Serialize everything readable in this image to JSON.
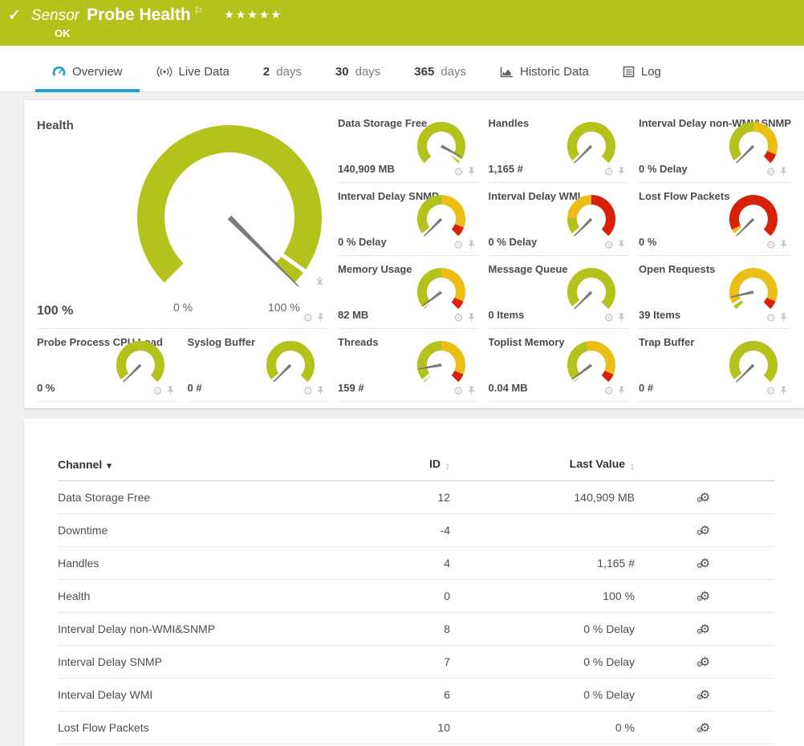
{
  "header": {
    "status_icon": "✓",
    "kind_label": "Sensor",
    "title": "Probe Health",
    "flag_icon": "⚐",
    "stars": "★★★★★",
    "status_text": "OK",
    "bg_color": "#b3c31c"
  },
  "tabs": [
    {
      "id": "overview",
      "icon": "gauge",
      "label": "Overview",
      "active": true
    },
    {
      "id": "live-data",
      "icon": "broadcast",
      "label": "Live Data",
      "active": false
    },
    {
      "id": "2-days",
      "num": "2",
      "label": "days",
      "active": false
    },
    {
      "id": "30-days",
      "num": "30",
      "label": "days",
      "active": false
    },
    {
      "id": "365-days",
      "num": "365",
      "label": "days",
      "active": false
    },
    {
      "id": "historic-data",
      "icon": "chart",
      "label": "Historic Data",
      "active": false
    },
    {
      "id": "log",
      "icon": "log",
      "label": "Log",
      "active": false
    }
  ],
  "colors": {
    "green": "#b3c31c",
    "yellow": "#ebbe15",
    "red": "#d92008",
    "needle": "#7a7a7a",
    "accent_blue": "#1ba2d1"
  },
  "health_gauge": {
    "title": "Health",
    "value": "100 %",
    "scale_min": "0 %",
    "scale_max": "100 %",
    "needle": 1.0,
    "marker": 0.965,
    "avg_label": "x̄",
    "segments": [
      {
        "color": "green",
        "from": 0,
        "to": 1
      }
    ]
  },
  "gauges": [
    {
      "title": "Data Storage Free",
      "value": "140,909 MB",
      "needle": 0.94,
      "marker": 0.97,
      "segments": [
        {
          "color": "green",
          "from": 0,
          "to": 1
        }
      ]
    },
    {
      "title": "Handles",
      "value": "1,165 #",
      "needle": 0,
      "marker": 0.02,
      "segments": [
        {
          "color": "green",
          "from": 0,
          "to": 1
        }
      ]
    },
    {
      "title": "Interval Delay non-WMI&SNMP",
      "value": "0 % Delay",
      "needle": 0,
      "marker": 0.02,
      "segments": [
        {
          "color": "green",
          "from": 0,
          "to": 0.5
        },
        {
          "color": "yellow",
          "from": 0.5,
          "to": 0.91
        },
        {
          "color": "red",
          "from": 0.91,
          "to": 1
        }
      ]
    },
    {
      "title": "Interval Delay SNMP",
      "value": "0 % Delay",
      "needle": 0,
      "marker": 0.02,
      "segments": [
        {
          "color": "green",
          "from": 0,
          "to": 0.5
        },
        {
          "color": "yellow",
          "from": 0.5,
          "to": 0.91
        },
        {
          "color": "red",
          "from": 0.91,
          "to": 1
        }
      ]
    },
    {
      "title": "Interval Delay WMI",
      "value": "0 % Delay",
      "needle": 0,
      "marker": 0.02,
      "segments": [
        {
          "color": "green",
          "from": 0,
          "to": 0.18
        },
        {
          "color": "yellow",
          "from": 0.18,
          "to": 0.5
        },
        {
          "color": "red",
          "from": 0.5,
          "to": 1
        }
      ]
    },
    {
      "title": "Lost Flow Packets",
      "value": "0 %",
      "needle": 0,
      "marker": 0.02,
      "segments": [
        {
          "color": "yellow",
          "from": 0,
          "to": 0.07
        },
        {
          "color": "red",
          "from": 0.07,
          "to": 1
        }
      ]
    },
    {
      "title": "Memory Usage",
      "value": "82 MB",
      "needle": 0.03,
      "marker": 0.02,
      "segments": [
        {
          "color": "green",
          "from": 0,
          "to": 0.5
        },
        {
          "color": "yellow",
          "from": 0.5,
          "to": 0.92
        },
        {
          "color": "red",
          "from": 0.92,
          "to": 1
        }
      ]
    },
    {
      "title": "Message Queue",
      "value": "0 Items",
      "needle": 0,
      "marker": 0.02,
      "segments": [
        {
          "color": "green",
          "from": 0,
          "to": 1
        }
      ]
    },
    {
      "title": "Open Requests",
      "value": "39 Items",
      "needle": 0.12,
      "marker": 0.05,
      "segments": [
        {
          "color": "green",
          "from": 0,
          "to": 0.05
        },
        {
          "color": "yellow",
          "from": 0.05,
          "to": 0.92
        },
        {
          "color": "red",
          "from": 0.92,
          "to": 1
        }
      ]
    },
    {
      "title": "Probe Process CPU Load",
      "value": "0 %",
      "needle": 0,
      "marker": 0.02,
      "segments": [
        {
          "color": "green",
          "from": 0,
          "to": 1
        }
      ]
    },
    {
      "title": "Syslog Buffer",
      "value": "0 #",
      "needle": 0,
      "marker": 0.02,
      "segments": [
        {
          "color": "green",
          "from": 0,
          "to": 1
        }
      ]
    },
    {
      "title": "Threads",
      "value": "159 #",
      "needle": 0.13,
      "marker": 0.02,
      "segments": [
        {
          "color": "green",
          "from": 0,
          "to": 0.5
        },
        {
          "color": "yellow",
          "from": 0.5,
          "to": 0.92
        },
        {
          "color": "red",
          "from": 0.92,
          "to": 1
        }
      ]
    },
    {
      "title": "Toplist Memory",
      "value": "0.04 MB",
      "needle": 0.03,
      "marker": 0.02,
      "segments": [
        {
          "color": "green",
          "from": 0,
          "to": 0.45
        },
        {
          "color": "yellow",
          "from": 0.45,
          "to": 0.92
        },
        {
          "color": "red",
          "from": 0.92,
          "to": 1
        }
      ]
    },
    {
      "title": "Trap Buffer",
      "value": "0 #",
      "needle": 0,
      "marker": 0.02,
      "segments": [
        {
          "color": "green",
          "from": 0,
          "to": 1
        }
      ]
    }
  ],
  "table": {
    "headers": [
      "Channel",
      "ID",
      "Last Value"
    ],
    "rows": [
      {
        "channel": "Data Storage Free",
        "id": "12",
        "last_value": "140,909 MB"
      },
      {
        "channel": "Downtime",
        "id": "-4",
        "last_value": ""
      },
      {
        "channel": "Handles",
        "id": "4",
        "last_value": "1,165 #"
      },
      {
        "channel": "Health",
        "id": "0",
        "last_value": "100 %"
      },
      {
        "channel": "Interval Delay non-WMI&SNMP",
        "id": "8",
        "last_value": "0 % Delay"
      },
      {
        "channel": "Interval Delay SNMP",
        "id": "7",
        "last_value": "0 % Delay"
      },
      {
        "channel": "Interval Delay WMI",
        "id": "6",
        "last_value": "0 % Delay"
      },
      {
        "channel": "Lost Flow Packets",
        "id": "10",
        "last_value": "0 %"
      }
    ]
  },
  "icons": {
    "gear": "⚙",
    "sort_up": "▲",
    "sort_down": "▼",
    "caret_down": "▾"
  }
}
